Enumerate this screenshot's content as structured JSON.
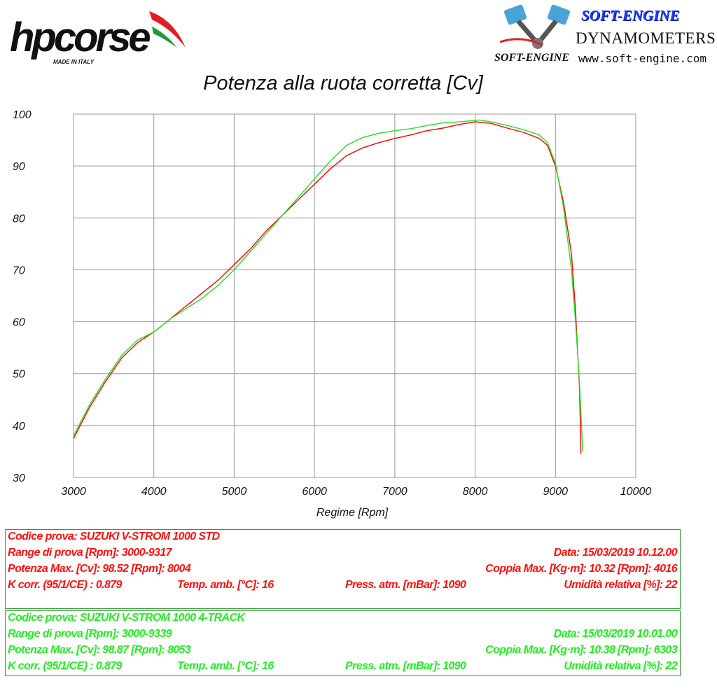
{
  "header": {
    "brand_logo": "hpcorse",
    "brand_tagline": "MADE IN ITALY",
    "dyno_logo_title": "SOFT-ENGINE",
    "dyno_logo_sub": "DYNAMOMETERS",
    "dyno_logo_small": "SOFT-ENGINE",
    "dyno_url": "www.soft-engine.com"
  },
  "chart_data": {
    "type": "line",
    "title": "Potenza alla ruota corretta [Cv]",
    "xlabel": "Regime [Rpm]",
    "ylabel": "",
    "xlim": [
      3000,
      10000
    ],
    "ylim": [
      30,
      100
    ],
    "xticks": [
      3000,
      4000,
      5000,
      6000,
      7000,
      8000,
      9000,
      10000
    ],
    "yticks": [
      30,
      40,
      50,
      60,
      70,
      80,
      90,
      100
    ],
    "grid": true,
    "series": [
      {
        "color": "#ff0000",
        "x": [
          3000,
          3200,
          3400,
          3600,
          3800,
          4000,
          4200,
          4400,
          4600,
          4800,
          5000,
          5200,
          5400,
          5600,
          5800,
          6000,
          6200,
          6400,
          6600,
          6800,
          7000,
          7200,
          7400,
          7600,
          7800,
          8004,
          8200,
          8400,
          8600,
          8800,
          8900,
          9000,
          9100,
          9200,
          9250,
          9300,
          9317
        ],
        "y": [
          37.5,
          43.5,
          48.5,
          53.0,
          56.0,
          58.0,
          60.5,
          63.0,
          65.5,
          68.0,
          71.0,
          74.0,
          77.5,
          80.5,
          83.5,
          86.5,
          89.5,
          92.0,
          93.5,
          94.5,
          95.3,
          96.0,
          96.8,
          97.3,
          98.0,
          98.52,
          98.2,
          97.3,
          96.5,
          95.3,
          94.0,
          90.0,
          83.0,
          73.0,
          62.0,
          47.0,
          34.5
        ]
      },
      {
        "color": "#22e022",
        "x": [
          3000,
          3200,
          3400,
          3600,
          3800,
          4000,
          4200,
          4400,
          4600,
          4800,
          5000,
          5200,
          5400,
          5600,
          5800,
          6000,
          6200,
          6400,
          6600,
          6800,
          7000,
          7200,
          7400,
          7600,
          7800,
          8053,
          8200,
          8400,
          8600,
          8800,
          8900,
          9000,
          9100,
          9200,
          9250,
          9300,
          9339
        ],
        "y": [
          38.0,
          44.0,
          49.0,
          53.5,
          56.5,
          58.0,
          60.5,
          62.5,
          64.5,
          67.0,
          70.0,
          73.5,
          77.0,
          80.5,
          84.0,
          87.5,
          91.0,
          94.0,
          95.5,
          96.3,
          96.8,
          97.2,
          97.8,
          98.3,
          98.5,
          98.87,
          98.5,
          97.8,
          97.0,
          96.0,
          94.5,
          90.5,
          82.0,
          70.0,
          60.0,
          48.0,
          35.0
        ]
      }
    ]
  },
  "tests": [
    {
      "color": "#ff1010",
      "codice": "Codice prova: SUZUKI V-STROM 1000 STD",
      "range": "Range di prova [Rpm]: 3000-9317",
      "data": "Data: 15/03/2019   10.12.00",
      "potenza": "Potenza Max. [Cv]: 98.52   [Rpm]: 8004",
      "coppia": "Coppia Max. [Kg·m]: 10.32   [Rpm]: 4016",
      "kcorr": "K corr. (95/1/CE) : 0.879",
      "temp": "Temp. amb. [°C]: 16",
      "press": "Press. atm. [mBar]: 1090",
      "umid": "Umidità relativa [%]: 22"
    },
    {
      "color": "#22ee22",
      "codice": "Codice prova: SUZUKI V-STROM 1000  4-TRACK",
      "range": "Range di prova [Rpm]: 3000-9339",
      "data": "Data: 15/03/2019   10.01.00",
      "potenza": "Potenza Max. [Cv]: 98.87   [Rpm]: 8053",
      "coppia": "Coppia Max. [Kg·m]: 10.38   [Rpm]: 6303",
      "kcorr": "K corr. (95/1/CE) : 0.879",
      "temp": "Temp. amb. [°C]: 16",
      "press": "Press. atm. [mBar]: 1090",
      "umid": "Umidità relativa [%]: 22"
    }
  ]
}
